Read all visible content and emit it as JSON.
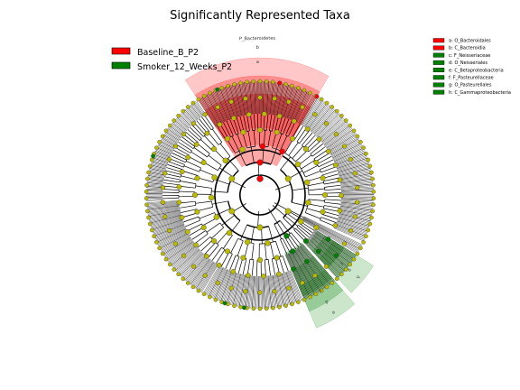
{
  "chart_data": {
    "type": "cladogram",
    "title": "Significantly Represented Taxa",
    "colors": {
      "group1": "#ff0000",
      "group2": "#008000",
      "not_significant": "#bbbb00"
    },
    "groups": [
      {
        "name": "Baseline_B_P2",
        "color": "#ff0000"
      },
      {
        "name": "Smoker_12_Weeks_P2",
        "color": "#008000"
      }
    ],
    "clades": [
      {
        "letter": "a",
        "name": "O_Bacteroidales",
        "group": "Baseline_B_P2",
        "color": "#ff0000"
      },
      {
        "letter": "b",
        "name": "C_Bacteroidia",
        "group": "Baseline_B_P2",
        "color": "#ff0000"
      },
      {
        "letter": "c",
        "name": "F_Neisseriaceae",
        "group": "Smoker_12_Weeks_P2",
        "color": "#008000"
      },
      {
        "letter": "d",
        "name": "O_Neisseriales",
        "group": "Smoker_12_Weeks_P2",
        "color": "#008000"
      },
      {
        "letter": "e",
        "name": "C_Betaproteobacteria",
        "group": "Smoker_12_Weeks_P2",
        "color": "#008000"
      },
      {
        "letter": "f",
        "name": "F_Pasteurellaceae",
        "group": "Smoker_12_Weeks_P2",
        "color": "#008000"
      },
      {
        "letter": "g",
        "name": "O_Pasteurellales",
        "group": "Smoker_12_Weeks_P2",
        "color": "#008000"
      },
      {
        "letter": "h",
        "name": "C_Gammaproteobacteria",
        "group": "Smoker_12_Weeks_P2",
        "color": "#008000"
      }
    ],
    "sector_labels": {
      "red": [
        "P_Bacteroidetes",
        "b",
        "a"
      ],
      "green_inner": [
        "e",
        "d",
        "c"
      ],
      "green_outer": [
        "h",
        "g",
        "f"
      ]
    }
  }
}
